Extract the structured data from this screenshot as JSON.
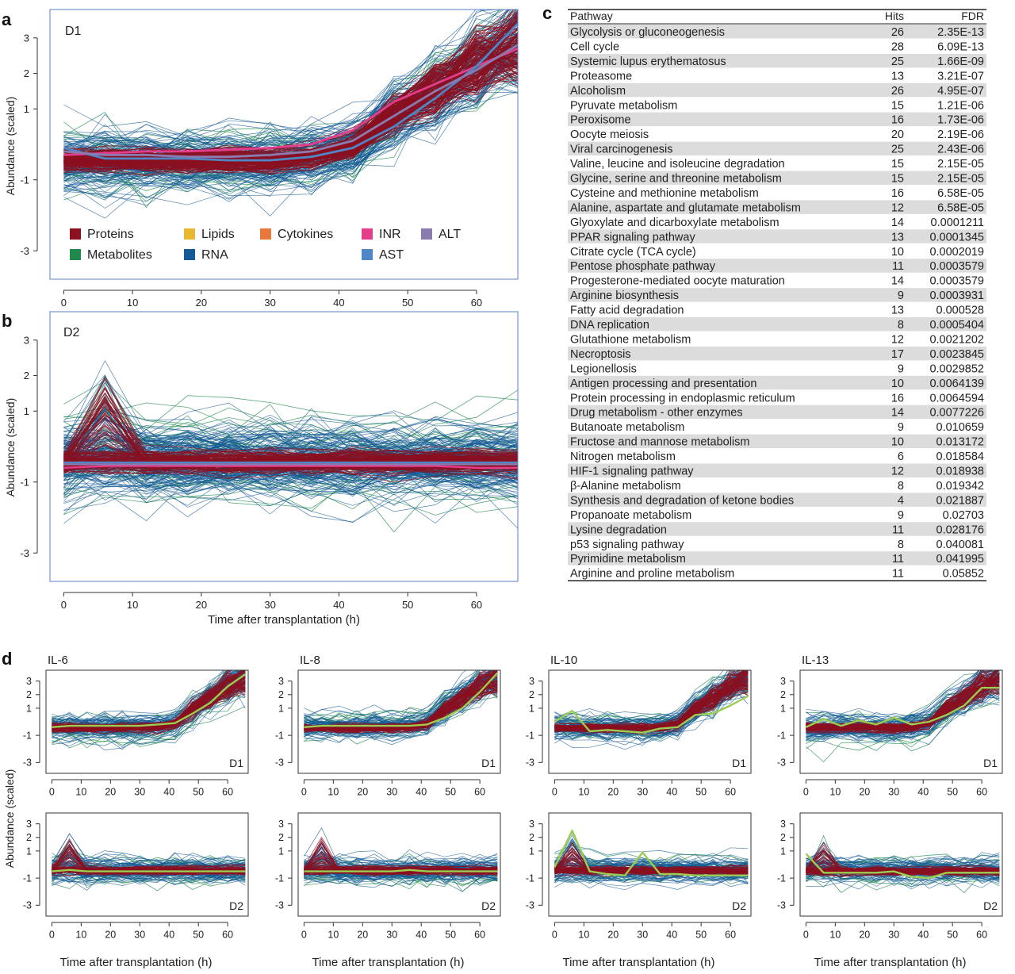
{
  "panel_letters": {
    "a": "a",
    "b": "b",
    "c": "c",
    "d": "d"
  },
  "colors": {
    "Proteins": "#8b1020",
    "Metabolites": "#1f8a4c",
    "Lipids": "#e8b830",
    "RNA": "#145a96",
    "Cytokines": "#e8783c",
    "INR": "#e43d8c",
    "AST": "#4f86c6",
    "ALT": "#8a7bb0",
    "cytokine_highlight": "#9acd50",
    "frame": "#5a7fc0"
  },
  "chart_data": [
    {
      "id": "a",
      "type": "line",
      "title": "D1",
      "ylabel": "Abundance (scaled)",
      "xlabel": "",
      "xlim": [
        -2,
        66
      ],
      "ylim": [
        -3.8,
        3.8
      ],
      "xticks": [
        0,
        10,
        20,
        30,
        40,
        50,
        60
      ],
      "yticks": [
        -3,
        -1,
        1,
        2,
        3
      ],
      "x": [
        0,
        6,
        12,
        18,
        24,
        30,
        36,
        42,
        48,
        54,
        60,
        66
      ],
      "legend": {
        "position": "bottom-inside",
        "entries": [
          "Proteins",
          "Metabolites",
          "Lipids",
          "RNA",
          "Cytokines",
          "INR",
          "AST",
          "ALT"
        ]
      },
      "series": [
        {
          "name": "INR",
          "values": [
            -0.3,
            -0.25,
            -0.2,
            -0.2,
            -0.15,
            -0.1,
            0.0,
            0.4,
            1.2,
            1.7,
            2.2,
            2.7
          ]
        },
        {
          "name": "AST",
          "values": [
            -0.1,
            -0.4,
            -0.4,
            -0.4,
            -0.45,
            -0.45,
            -0.35,
            -0.1,
            0.5,
            1.3,
            2.2,
            3.4
          ]
        },
        {
          "name": "ALT",
          "values": [
            -0.2,
            -0.3,
            -0.3,
            -0.35,
            -0.35,
            -0.3,
            -0.2,
            0.1,
            0.8,
            1.5,
            2.1,
            2.8
          ]
        }
      ]
    },
    {
      "id": "b",
      "type": "line",
      "title": "D2",
      "ylabel": "Abundance (scaled)",
      "xlabel": "Time after transplantation (h)",
      "xlim": [
        -2,
        66
      ],
      "ylim": [
        -3.8,
        3.8
      ],
      "xticks": [
        0,
        10,
        20,
        30,
        40,
        50,
        60
      ],
      "yticks": [
        -3,
        -1,
        1,
        2,
        3
      ],
      "x": [
        0,
        6,
        12,
        18,
        24,
        30,
        36,
        42,
        48,
        54,
        60,
        66
      ],
      "series": [
        {
          "name": "INR",
          "values": [
            -0.6,
            -0.55,
            -0.55,
            -0.55,
            -0.55,
            -0.55,
            -0.55,
            -0.55,
            -0.55,
            -0.55,
            -0.6,
            -0.6
          ]
        },
        {
          "name": "AST",
          "values": [
            -0.45,
            -0.45,
            -0.45,
            -0.45,
            -0.45,
            -0.45,
            -0.45,
            -0.45,
            -0.45,
            -0.45,
            -0.45,
            -0.45
          ]
        },
        {
          "name": "ALT",
          "values": [
            -0.5,
            -0.5,
            -0.5,
            -0.5,
            -0.5,
            -0.5,
            -0.5,
            -0.5,
            -0.5,
            -0.5,
            -0.5,
            -0.5
          ]
        }
      ]
    },
    {
      "id": "c",
      "type": "table",
      "columns": [
        "Pathway",
        "Hits",
        "FDR"
      ],
      "rows": [
        [
          "Glycolysis or gluconeogenesis",
          "26",
          "2.35E-13"
        ],
        [
          "Cell cycle",
          "28",
          "6.09E-13"
        ],
        [
          "Systemic lupus erythematosus",
          "25",
          "1.66E-09"
        ],
        [
          "Proteasome",
          "13",
          "3.21E-07"
        ],
        [
          "Alcoholism",
          "26",
          "4.95E-07"
        ],
        [
          "Pyruvate metabolism",
          "15",
          "1.21E-06"
        ],
        [
          "Peroxisome",
          "16",
          "1.73E-06"
        ],
        [
          "Oocyte meiosis",
          "20",
          "2.19E-06"
        ],
        [
          "Viral carcinogenesis",
          "25",
          "2.43E-06"
        ],
        [
          "Valine, leucine and isoleucine degradation",
          "15",
          "2.15E-05"
        ],
        [
          "Glycine, serine and threonine metabolism",
          "15",
          "2.15E-05"
        ],
        [
          "Cysteine and methionine metabolism",
          "16",
          "6.58E-05"
        ],
        [
          "Alanine, aspartate and glutamate metabolism",
          "12",
          "6.58E-05"
        ],
        [
          "Glyoxylate and dicarboxylate metabolism",
          "14",
          "0.0001211"
        ],
        [
          "PPAR signaling pathway",
          "13",
          "0.0001345"
        ],
        [
          "Citrate cycle (TCA cycle)",
          "10",
          "0.0002019"
        ],
        [
          "Pentose phosphate pathway",
          "11",
          "0.0003579"
        ],
        [
          "Progesterone-mediated oocyte maturation",
          "14",
          "0.0003579"
        ],
        [
          "Arginine biosynthesis",
          "9",
          "0.0003931"
        ],
        [
          "Fatty acid degradation",
          "13",
          "0.000528"
        ],
        [
          "DNA replication",
          "8",
          "0.0005404"
        ],
        [
          "Glutathione metabolism",
          "12",
          "0.0021202"
        ],
        [
          "Necroptosis",
          "17",
          "0.0023845"
        ],
        [
          "Legionellosis",
          "9",
          "0.0029852"
        ],
        [
          "Antigen processing and presentation",
          "10",
          "0.0064139"
        ],
        [
          "Protein processing in endoplasmic reticulum",
          "16",
          "0.0064594"
        ],
        [
          "Drug metabolism - other enzymes",
          "14",
          "0.0077226"
        ],
        [
          "Butanoate metabolism",
          "9",
          "0.010659"
        ],
        [
          "Fructose and mannose metabolism",
          "10",
          "0.013172"
        ],
        [
          "Nitrogen metabolism",
          "6",
          "0.018584"
        ],
        [
          "HIF-1 signaling pathway",
          "12",
          "0.018938"
        ],
        [
          "β-Alanine metabolism",
          "8",
          "0.019342"
        ],
        [
          "Synthesis and degradation of ketone bodies",
          "4",
          "0.021887"
        ],
        [
          "Propanoate metabolism",
          "9",
          "0.02703"
        ],
        [
          "Lysine degradation",
          "11",
          "0.028176"
        ],
        [
          "p53 signaling pathway",
          "8",
          "0.040081"
        ],
        [
          "Pyrimidine metabolism",
          "11",
          "0.041995"
        ],
        [
          "Arginine and proline metabolism",
          "11",
          "0.05852"
        ]
      ]
    },
    {
      "id": "d",
      "type": "line",
      "ylabel": "Abundance (scaled)",
      "xlabel": "Time after transplantation (h)",
      "xlim": [
        -2,
        67
      ],
      "ylim": [
        -3.8,
        3.8
      ],
      "xticks": [
        0,
        10,
        20,
        30,
        40,
        50,
        60
      ],
      "yticks": [
        -3,
        -1,
        1,
        2,
        3
      ],
      "x": [
        0,
        6,
        12,
        18,
        24,
        30,
        36,
        42,
        48,
        54,
        60,
        66
      ],
      "cytokines": [
        {
          "title": "IL-6",
          "D1": [
            -0.4,
            -0.3,
            -0.3,
            -0.3,
            -0.3,
            -0.3,
            -0.2,
            -0.1,
            0.6,
            1.4,
            2.6,
            3.5
          ],
          "D2": [
            -0.5,
            -0.4,
            -0.5,
            -0.5,
            -0.5,
            -0.5,
            -0.5,
            -0.5,
            -0.5,
            -0.5,
            -0.5,
            -0.5
          ]
        },
        {
          "title": "IL-8",
          "D1": [
            -0.4,
            -0.3,
            -0.3,
            -0.3,
            -0.3,
            -0.3,
            -0.3,
            -0.2,
            0.3,
            1.0,
            2.2,
            3.6
          ],
          "D2": [
            -0.5,
            -0.5,
            -0.5,
            -0.5,
            -0.5,
            -0.5,
            -0.4,
            -0.5,
            -0.5,
            -0.5,
            -0.5,
            -0.5
          ]
        },
        {
          "title": "IL-10",
          "D1": [
            0.0,
            0.8,
            -0.7,
            -0.6,
            -0.7,
            -0.8,
            -0.5,
            -0.4,
            0.5,
            0.6,
            1.2,
            1.9
          ],
          "D2": [
            -0.2,
            2.5,
            -0.5,
            -0.7,
            -0.8,
            0.9,
            -0.7,
            -0.7,
            -0.8,
            -0.8,
            -0.8,
            -0.8
          ]
        },
        {
          "title": "IL-13",
          "D1": [
            -0.4,
            0.2,
            -0.3,
            0.1,
            -0.2,
            0.3,
            -0.2,
            0.0,
            0.5,
            1.2,
            2.5,
            2.5
          ],
          "D2": [
            0.8,
            -0.6,
            -0.6,
            -0.6,
            -0.6,
            -0.5,
            -0.9,
            -1.0,
            -0.6,
            -0.6,
            -0.6,
            -0.6
          ]
        }
      ],
      "row_labels": [
        "D1",
        "D2"
      ]
    }
  ]
}
